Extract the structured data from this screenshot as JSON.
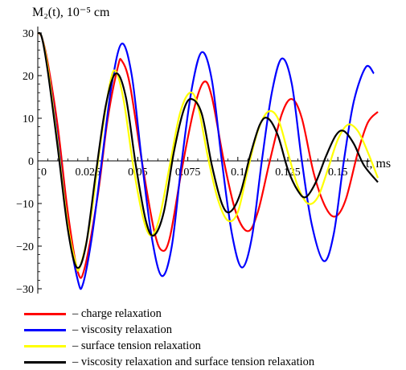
{
  "chart_data": {
    "type": "line",
    "ylabel": "M₂(t), 10⁻⁵ cm",
    "xlabel": "t, ms",
    "xlim": [
      0,
      0.17
    ],
    "ylim": [
      -30,
      30
    ],
    "x_ticks": [
      0,
      0.025,
      0.05,
      0.075,
      0.1,
      0.125,
      0.15
    ],
    "x_tick_labels": [
      "0",
      "0.025",
      "0.05",
      "0.075",
      "0.1",
      "0.125",
      "0.15"
    ],
    "y_ticks": [
      -30,
      -20,
      -10,
      0,
      10,
      20,
      30
    ],
    "y_tick_labels": [
      "−30",
      "−20",
      "−10",
      "0",
      "10",
      "20",
      "30"
    ],
    "series": [
      {
        "name": "– charge relaxation",
        "color": "#ff0000",
        "points": [
          [
            0,
            30
          ],
          [
            0.002,
            29
          ],
          [
            0.005,
            23
          ],
          [
            0.01,
            8
          ],
          [
            0.015,
            -12
          ],
          [
            0.02,
            -26
          ],
          [
            0.0235,
            -25
          ],
          [
            0.03,
            -8
          ],
          [
            0.035,
            10
          ],
          [
            0.04,
            22
          ],
          [
            0.042,
            23.5
          ],
          [
            0.046,
            18
          ],
          [
            0.052,
            0
          ],
          [
            0.058,
            -16
          ],
          [
            0.062,
            -21
          ],
          [
            0.066,
            -18
          ],
          [
            0.072,
            -2
          ],
          [
            0.078,
            12
          ],
          [
            0.083,
            18.5
          ],
          [
            0.087,
            15
          ],
          [
            0.093,
            0
          ],
          [
            0.099,
            -12
          ],
          [
            0.105,
            -16.5
          ],
          [
            0.11,
            -12
          ],
          [
            0.116,
            0
          ],
          [
            0.122,
            11
          ],
          [
            0.127,
            14.5
          ],
          [
            0.132,
            10
          ],
          [
            0.138,
            -3
          ],
          [
            0.144,
            -11
          ],
          [
            0.149,
            -13
          ],
          [
            0.154,
            -9
          ],
          [
            0.16,
            2
          ],
          [
            0.165,
            9
          ],
          [
            0.17,
            11.5
          ]
        ]
      },
      {
        "name": "– viscosity relaxation",
        "color": "#0000ff",
        "points": [
          [
            0,
            30
          ],
          [
            0.002,
            29
          ],
          [
            0.005,
            22
          ],
          [
            0.01,
            5
          ],
          [
            0.015,
            -15
          ],
          [
            0.02,
            -28
          ],
          [
            0.0225,
            -29
          ],
          [
            0.027,
            -18
          ],
          [
            0.032,
            0
          ],
          [
            0.037,
            18
          ],
          [
            0.042,
            27.5
          ],
          [
            0.047,
            20
          ],
          [
            0.052,
            0
          ],
          [
            0.057,
            -18
          ],
          [
            0.062,
            -27
          ],
          [
            0.067,
            -20
          ],
          [
            0.072,
            0
          ],
          [
            0.077,
            17
          ],
          [
            0.082,
            25.5
          ],
          [
            0.087,
            19
          ],
          [
            0.092,
            0
          ],
          [
            0.097,
            -17
          ],
          [
            0.102,
            -25
          ],
          [
            0.107,
            -18
          ],
          [
            0.112,
            0
          ],
          [
            0.117,
            16
          ],
          [
            0.122,
            24
          ],
          [
            0.127,
            18
          ],
          [
            0.132,
            0
          ],
          [
            0.137,
            -15
          ],
          [
            0.143,
            -23.5
          ],
          [
            0.148,
            -17
          ],
          [
            0.153,
            0
          ],
          [
            0.158,
            14
          ],
          [
            0.164,
            22
          ],
          [
            0.168,
            20.5
          ]
        ]
      },
      {
        "name": "– surface tension relaxation",
        "color": "#ffff00",
        "points": [
          [
            0,
            30
          ],
          [
            0.002,
            29
          ],
          [
            0.005,
            22
          ],
          [
            0.01,
            4
          ],
          [
            0.015,
            -15
          ],
          [
            0.019,
            -24
          ],
          [
            0.021,
            -25
          ],
          [
            0.026,
            -15
          ],
          [
            0.031,
            3
          ],
          [
            0.036,
            18
          ],
          [
            0.039,
            21
          ],
          [
            0.043,
            14
          ],
          [
            0.048,
            -2
          ],
          [
            0.053,
            -14
          ],
          [
            0.057,
            -17.5
          ],
          [
            0.061,
            -13
          ],
          [
            0.066,
            -1
          ],
          [
            0.071,
            11
          ],
          [
            0.076,
            16
          ],
          [
            0.08,
            13
          ],
          [
            0.085,
            1
          ],
          [
            0.09,
            -9
          ],
          [
            0.095,
            -14
          ],
          [
            0.1,
            -12
          ],
          [
            0.105,
            -2
          ],
          [
            0.11,
            7
          ],
          [
            0.115,
            11.5
          ],
          [
            0.12,
            10
          ],
          [
            0.125,
            2
          ],
          [
            0.13,
            -6
          ],
          [
            0.135,
            -10
          ],
          [
            0.14,
            -8.5
          ],
          [
            0.145,
            -2
          ],
          [
            0.15,
            5
          ],
          [
            0.155,
            8.5
          ],
          [
            0.16,
            7
          ],
          [
            0.165,
            2
          ],
          [
            0.17,
            -4
          ]
        ]
      },
      {
        "name": "– viscosity relaxation and surface tension relaxation",
        "color": "#000000",
        "points": [
          [
            0,
            30
          ],
          [
            0.002,
            29
          ],
          [
            0.005,
            21
          ],
          [
            0.01,
            3
          ],
          [
            0.015,
            -16
          ],
          [
            0.0195,
            -25
          ],
          [
            0.024,
            -20
          ],
          [
            0.029,
            -3
          ],
          [
            0.034,
            13
          ],
          [
            0.039,
            20.5
          ],
          [
            0.044,
            15
          ],
          [
            0.049,
            -1
          ],
          [
            0.054,
            -14
          ],
          [
            0.058,
            -17.5
          ],
          [
            0.063,
            -12
          ],
          [
            0.068,
            2
          ],
          [
            0.073,
            12
          ],
          [
            0.077,
            14.5
          ],
          [
            0.082,
            11
          ],
          [
            0.087,
            -1
          ],
          [
            0.092,
            -10
          ],
          [
            0.096,
            -12
          ],
          [
            0.101,
            -8
          ],
          [
            0.106,
            1
          ],
          [
            0.111,
            8.5
          ],
          [
            0.115,
            10
          ],
          [
            0.12,
            6
          ],
          [
            0.125,
            -2
          ],
          [
            0.13,
            -7
          ],
          [
            0.134,
            -8.5
          ],
          [
            0.139,
            -5
          ],
          [
            0.144,
            1
          ],
          [
            0.149,
            6
          ],
          [
            0.153,
            7
          ],
          [
            0.158,
            4
          ],
          [
            0.163,
            -1
          ],
          [
            0.17,
            -5
          ]
        ]
      }
    ]
  }
}
